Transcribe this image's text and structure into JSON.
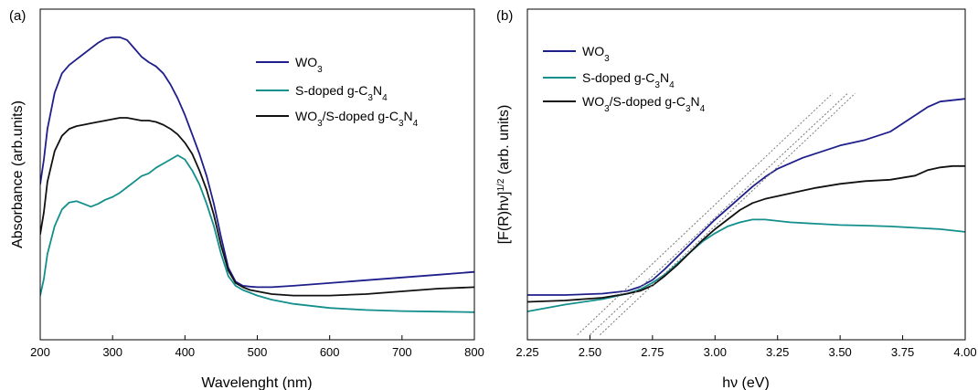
{
  "chart_data": [
    {
      "type": "line",
      "panel_label": "(a)",
      "xlabel": "Wavelenght (nm)",
      "ylabel": "Absorbance (arb.units)",
      "xlim": [
        200,
        800
      ],
      "ylim": [
        0,
        1
      ],
      "x_ticks": [
        "200",
        "300",
        "400",
        "500",
        "600",
        "700",
        "800"
      ],
      "y_ticks_shown": false,
      "legend_position": "top-right",
      "series": [
        {
          "name": "WO3",
          "color": "#1f1f8c",
          "x": [
            200,
            205,
            210,
            220,
            230,
            240,
            250,
            260,
            270,
            280,
            290,
            300,
            310,
            320,
            330,
            340,
            350,
            360,
            370,
            380,
            390,
            400,
            410,
            420,
            430,
            440,
            450,
            460,
            470,
            480,
            490,
            500,
            520,
            550,
            600,
            650,
            700,
            750,
            800
          ],
          "y": [
            0.47,
            0.56,
            0.67,
            0.8,
            0.87,
            0.9,
            0.92,
            0.94,
            0.96,
            0.98,
            0.995,
            1.0,
            1.0,
            0.99,
            0.96,
            0.93,
            0.91,
            0.895,
            0.87,
            0.83,
            0.78,
            0.72,
            0.65,
            0.58,
            0.5,
            0.4,
            0.28,
            0.17,
            0.12,
            0.105,
            0.102,
            0.1,
            0.1,
            0.105,
            0.115,
            0.125,
            0.135,
            0.145,
            0.155
          ]
        },
        {
          "name": "S-doped g-C3N4",
          "color": "#138f8c",
          "x": [
            200,
            205,
            210,
            220,
            230,
            240,
            250,
            260,
            270,
            280,
            290,
            300,
            310,
            320,
            330,
            340,
            350,
            360,
            370,
            380,
            390,
            400,
            410,
            420,
            430,
            440,
            450,
            460,
            470,
            480,
            490,
            500,
            520,
            550,
            600,
            650,
            700,
            750,
            800
          ],
          "y": [
            0.07,
            0.13,
            0.22,
            0.32,
            0.38,
            0.405,
            0.41,
            0.4,
            0.39,
            0.4,
            0.415,
            0.425,
            0.44,
            0.46,
            0.48,
            0.5,
            0.51,
            0.53,
            0.545,
            0.56,
            0.575,
            0.56,
            0.52,
            0.47,
            0.4,
            0.32,
            0.22,
            0.14,
            0.105,
            0.09,
            0.08,
            0.07,
            0.055,
            0.04,
            0.025,
            0.018,
            0.014,
            0.012,
            0.01
          ]
        },
        {
          "name": "WO3/S-doped g-C3N4",
          "color": "#111111",
          "x": [
            200,
            205,
            210,
            220,
            230,
            240,
            250,
            260,
            270,
            280,
            290,
            300,
            310,
            320,
            330,
            340,
            350,
            360,
            370,
            380,
            390,
            400,
            410,
            420,
            430,
            440,
            450,
            460,
            470,
            480,
            490,
            500,
            520,
            550,
            600,
            650,
            700,
            750,
            800
          ],
          "y": [
            0.29,
            0.37,
            0.48,
            0.59,
            0.645,
            0.67,
            0.68,
            0.685,
            0.69,
            0.695,
            0.7,
            0.705,
            0.71,
            0.71,
            0.705,
            0.7,
            0.7,
            0.695,
            0.685,
            0.67,
            0.65,
            0.62,
            0.58,
            0.52,
            0.45,
            0.36,
            0.25,
            0.16,
            0.115,
            0.1,
            0.09,
            0.085,
            0.075,
            0.07,
            0.07,
            0.075,
            0.085,
            0.095,
            0.1
          ]
        }
      ]
    },
    {
      "type": "line",
      "panel_label": "(b)",
      "xlabel": "hν (eV)",
      "ylabel": "[F(R)hν]",
      "ylabel_superscript": "1/2",
      "ylabel_suffix": " (arb. units)",
      "xlim": [
        2.25,
        4.0
      ],
      "ylim": [
        0,
        1
      ],
      "x_ticks": [
        "2.25",
        "2.50",
        "2.75",
        "3.00",
        "3.25",
        "3.50",
        "3.75",
        "4.00"
      ],
      "y_ticks_shown": false,
      "legend_position": "top-left",
      "series": [
        {
          "name": "WO3",
          "color": "#1f1f8c",
          "x": [
            2.25,
            2.4,
            2.55,
            2.65,
            2.7,
            2.75,
            2.8,
            2.85,
            2.9,
            2.95,
            3.0,
            3.05,
            3.1,
            3.15,
            3.2,
            3.25,
            3.3,
            3.35,
            3.4,
            3.45,
            3.5,
            3.55,
            3.6,
            3.65,
            3.7,
            3.75,
            3.8,
            3.85,
            3.9,
            3.95,
            4.0
          ],
          "y": [
            0.145,
            0.145,
            0.15,
            0.16,
            0.175,
            0.2,
            0.24,
            0.285,
            0.33,
            0.375,
            0.42,
            0.46,
            0.5,
            0.54,
            0.575,
            0.605,
            0.625,
            0.645,
            0.66,
            0.675,
            0.69,
            0.7,
            0.71,
            0.725,
            0.74,
            0.77,
            0.8,
            0.83,
            0.85,
            0.855,
            0.86
          ]
        },
        {
          "name": "S-doped g-C3N4",
          "color": "#138f8c",
          "x": [
            2.25,
            2.4,
            2.55,
            2.65,
            2.7,
            2.75,
            2.8,
            2.85,
            2.9,
            2.95,
            3.0,
            3.05,
            3.1,
            3.15,
            3.2,
            3.25,
            3.3,
            3.4,
            3.5,
            3.6,
            3.7,
            3.8,
            3.9,
            4.0
          ],
          "y": [
            0.085,
            0.11,
            0.13,
            0.15,
            0.165,
            0.19,
            0.22,
            0.26,
            0.3,
            0.34,
            0.37,
            0.395,
            0.41,
            0.42,
            0.42,
            0.415,
            0.41,
            0.405,
            0.4,
            0.398,
            0.395,
            0.39,
            0.385,
            0.375
          ]
        },
        {
          "name": "WO3/S-doped g-C3N4",
          "color": "#111111",
          "x": [
            2.25,
            2.4,
            2.55,
            2.65,
            2.7,
            2.75,
            2.8,
            2.85,
            2.9,
            2.95,
            3.0,
            3.05,
            3.1,
            3.15,
            3.2,
            3.25,
            3.3,
            3.35,
            3.4,
            3.5,
            3.6,
            3.7,
            3.8,
            3.85,
            3.9,
            3.95,
            4.0
          ],
          "y": [
            0.12,
            0.125,
            0.135,
            0.15,
            0.16,
            0.18,
            0.215,
            0.255,
            0.3,
            0.345,
            0.385,
            0.42,
            0.455,
            0.48,
            0.495,
            0.505,
            0.515,
            0.525,
            0.535,
            0.55,
            0.56,
            0.565,
            0.58,
            0.6,
            0.61,
            0.615,
            0.615
          ]
        },
        {
          "name": "",
          "style": "tangent",
          "color": "#777777",
          "x": [
            2.45,
            3.47
          ],
          "y": [
            0.0,
            0.88
          ]
        },
        {
          "name": "",
          "style": "tangent",
          "color": "#777777",
          "x": [
            2.5,
            3.53
          ],
          "y": [
            0.0,
            0.88
          ]
        },
        {
          "name": "",
          "style": "tangent",
          "color": "#777777",
          "x": [
            2.54,
            3.56
          ],
          "y": [
            0.0,
            0.88
          ]
        }
      ]
    }
  ]
}
